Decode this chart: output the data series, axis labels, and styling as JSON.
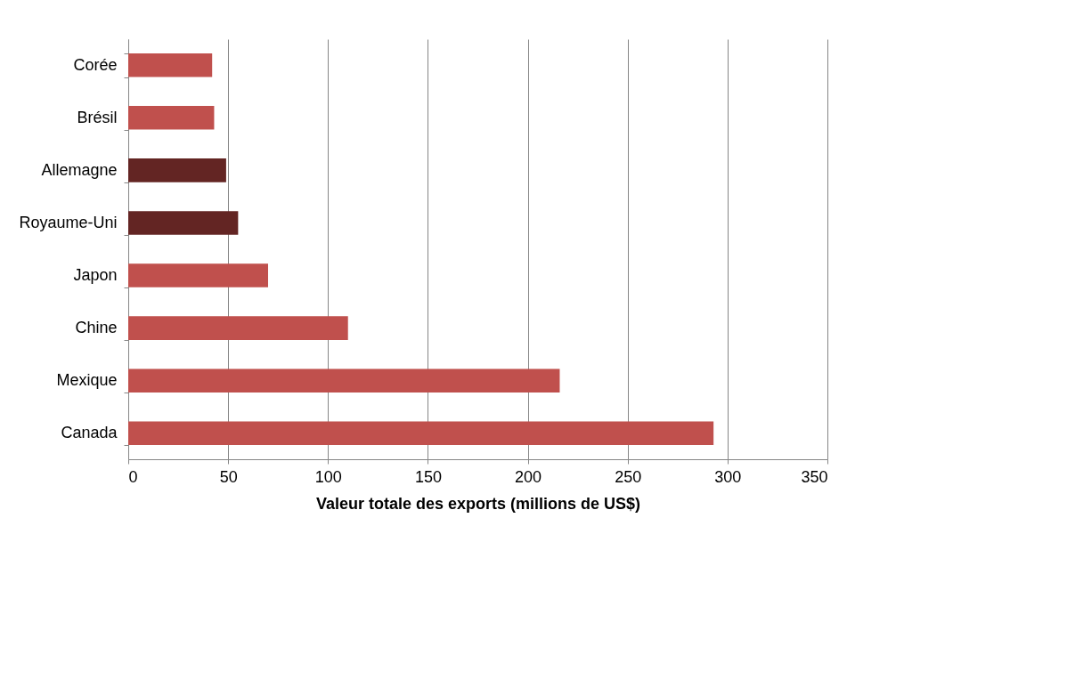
{
  "chart_data": {
    "type": "bar",
    "orientation": "horizontal",
    "xlabel": "Valeur totale des exports (millions de US$)",
    "categories": [
      "Corée",
      "Brésil",
      "Allemagne",
      "Royaume-Uni",
      "Japon",
      "Chine",
      "Mexique",
      "Canada"
    ],
    "values": [
      42,
      43,
      49,
      55,
      70,
      110,
      216,
      293
    ],
    "colors": [
      "#c0504d",
      "#c0504d",
      "#632523",
      "#632523",
      "#c0504d",
      "#c0504d",
      "#c0504d",
      "#c0504d"
    ],
    "xlim": [
      0,
      350
    ],
    "xticks": [
      0,
      50,
      100,
      150,
      200,
      250,
      300,
      350
    ],
    "grid": "x"
  }
}
